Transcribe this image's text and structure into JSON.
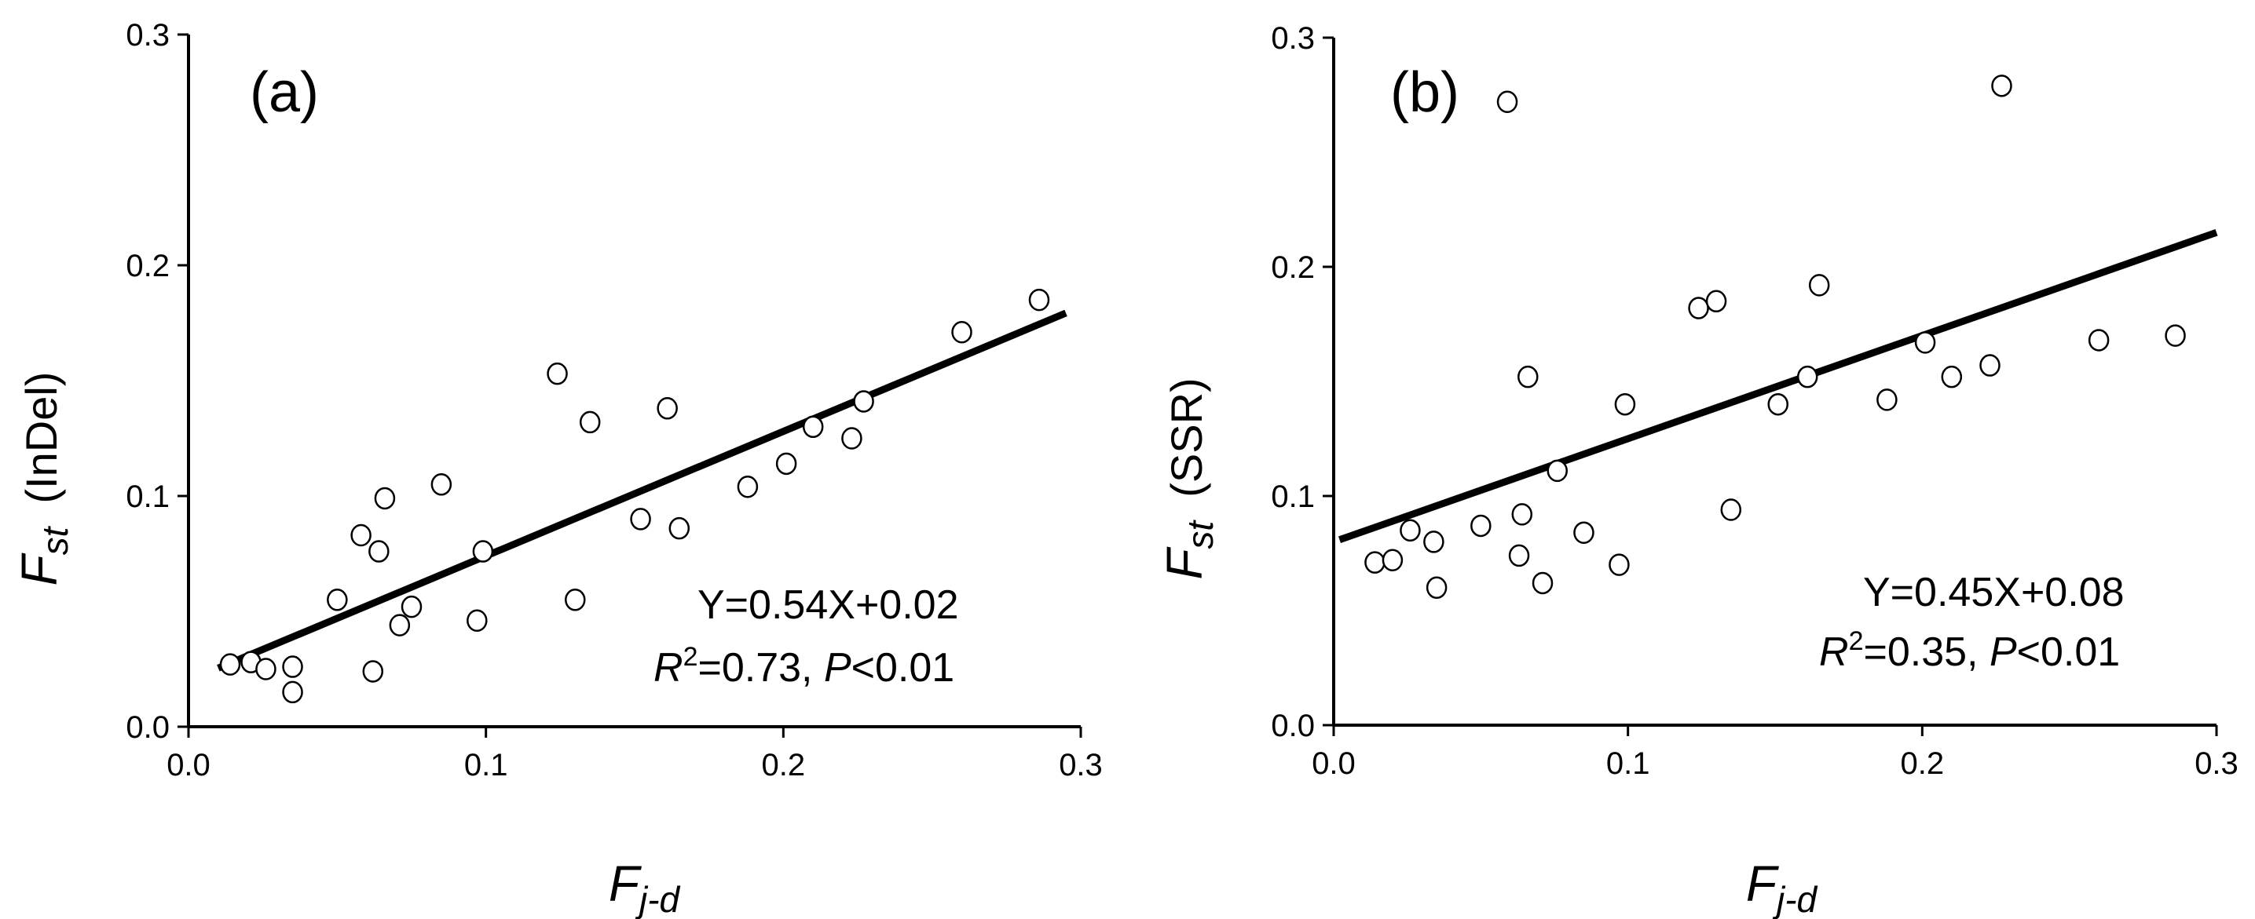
{
  "chart_data": [
    {
      "type": "scatter",
      "panel_label": "(a)",
      "ylabel_main": "F",
      "ylabel_sub": "st",
      "ylabel_text": "(InDel)",
      "xlabel_main": "F",
      "xlabel_sub": "j-d",
      "xlim": [
        0,
        0.3
      ],
      "ylim": [
        0,
        0.3
      ],
      "xticks": [
        "0.0",
        "0.1",
        "0.2",
        "0.3"
      ],
      "yticks": [
        "0.0",
        "0.1",
        "0.2",
        "0.3"
      ],
      "equation": "Y=0.54X+0.02",
      "r2_prefix": "R",
      "r2_sup": "2",
      "r2_value": "=0.73, ",
      "p_prefix": "P",
      "p_value": "<0.01",
      "fit": {
        "slope": 0.54,
        "intercept": 0.02,
        "x_range": [
          0.01,
          0.295
        ]
      },
      "points": [
        [
          0.014,
          0.027
        ],
        [
          0.021,
          0.028
        ],
        [
          0.026,
          0.025
        ],
        [
          0.035,
          0.026
        ],
        [
          0.035,
          0.015
        ],
        [
          0.05,
          0.055
        ],
        [
          0.058,
          0.083
        ],
        [
          0.062,
          0.024
        ],
        [
          0.064,
          0.076
        ],
        [
          0.066,
          0.099
        ],
        [
          0.071,
          0.044
        ],
        [
          0.075,
          0.052
        ],
        [
          0.085,
          0.105
        ],
        [
          0.097,
          0.046
        ],
        [
          0.099,
          0.076
        ],
        [
          0.124,
          0.153
        ],
        [
          0.13,
          0.055
        ],
        [
          0.135,
          0.132
        ],
        [
          0.152,
          0.09
        ],
        [
          0.161,
          0.138
        ],
        [
          0.165,
          0.086
        ],
        [
          0.188,
          0.104
        ],
        [
          0.201,
          0.114
        ],
        [
          0.21,
          0.13
        ],
        [
          0.223,
          0.125
        ],
        [
          0.227,
          0.141
        ],
        [
          0.26,
          0.171
        ],
        [
          0.286,
          0.185
        ]
      ]
    },
    {
      "type": "scatter",
      "panel_label": "(b)",
      "ylabel_main": "F",
      "ylabel_sub": "st",
      "ylabel_text": "(SSR)",
      "xlabel_main": "F",
      "xlabel_sub": "j-d",
      "xlim": [
        0,
        0.3
      ],
      "ylim": [
        0,
        0.3
      ],
      "xticks": [
        "0.0",
        "0.1",
        "0.2",
        "0.3"
      ],
      "yticks": [
        "0.0",
        "0.1",
        "0.2",
        "0.3"
      ],
      "equation": "Y=0.45X+0.08",
      "r2_prefix": "R",
      "r2_sup": "2",
      "r2_value": "=0.35, ",
      "p_prefix": "P",
      "p_value": "<0.01",
      "fit": {
        "slope": 0.45,
        "intercept": 0.08,
        "x_range": [
          0.002,
          0.3
        ]
      },
      "points": [
        [
          0.014,
          0.071
        ],
        [
          0.02,
          0.072
        ],
        [
          0.026,
          0.085
        ],
        [
          0.034,
          0.08
        ],
        [
          0.035,
          0.06
        ],
        [
          0.05,
          0.087
        ],
        [
          0.059,
          0.272
        ],
        [
          0.063,
          0.074
        ],
        [
          0.064,
          0.092
        ],
        [
          0.066,
          0.152
        ],
        [
          0.071,
          0.062
        ],
        [
          0.076,
          0.111
        ],
        [
          0.085,
          0.084
        ],
        [
          0.097,
          0.07
        ],
        [
          0.099,
          0.14
        ],
        [
          0.124,
          0.182
        ],
        [
          0.13,
          0.185
        ],
        [
          0.135,
          0.094
        ],
        [
          0.151,
          0.14
        ],
        [
          0.161,
          0.152
        ],
        [
          0.165,
          0.192
        ],
        [
          0.188,
          0.142
        ],
        [
          0.201,
          0.167
        ],
        [
          0.21,
          0.152
        ],
        [
          0.223,
          0.157
        ],
        [
          0.227,
          0.279
        ],
        [
          0.26,
          0.168
        ],
        [
          0.286,
          0.17
        ]
      ]
    }
  ]
}
